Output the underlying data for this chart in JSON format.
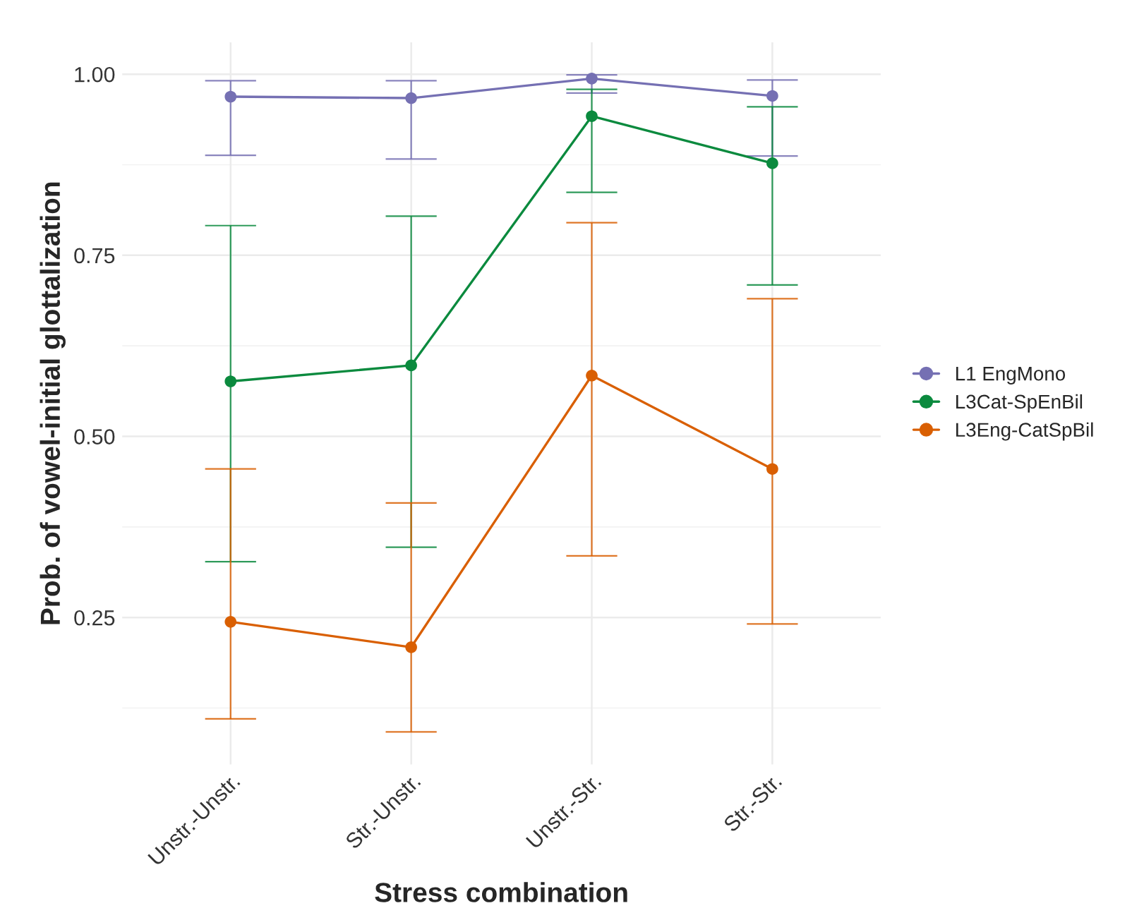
{
  "chart_data": {
    "type": "line",
    "xlabel": "Stress combination",
    "ylabel": "Prob. of vowel-initial glottalization",
    "categories": [
      "Unstr.-Unstr.",
      "Str.-Unstr.",
      "Unstr.-Str.",
      "Str.-Str."
    ],
    "series": [
      {
        "name": "L1 EngMono",
        "color": "#7570b3",
        "values": [
          0.969,
          0.967,
          0.994,
          0.97
        ],
        "errors": [
          [
            0.888,
            0.991
          ],
          [
            0.883,
            0.991
          ],
          [
            0.974,
            0.999
          ],
          [
            0.887,
            0.992
          ]
        ]
      },
      {
        "name": "L3Cat-SpEnBil",
        "color": "#0b8a3e",
        "values": [
          0.576,
          0.598,
          0.942,
          0.877
        ],
        "errors": [
          [
            0.327,
            0.791
          ],
          [
            0.347,
            0.804
          ],
          [
            0.837,
            0.979
          ],
          [
            0.709,
            0.955
          ]
        ]
      },
      {
        "name": "L3Eng-CatSpBil",
        "color": "#d95f02",
        "values": [
          0.244,
          0.209,
          0.584,
          0.455
        ],
        "errors": [
          [
            0.11,
            0.455
          ],
          [
            0.092,
            0.408
          ],
          [
            0.335,
            0.795
          ],
          [
            0.241,
            0.69
          ]
        ]
      }
    ],
    "ylim": [
      0.047,
      1.044
    ],
    "yticks": [
      {
        "value": 0.25,
        "label": "0.25"
      },
      {
        "value": 0.5,
        "label": "0.50"
      },
      {
        "value": 0.75,
        "label": "0.75"
      },
      {
        "value": 1.0,
        "label": "1.00"
      }
    ],
    "grid": true,
    "legend": "right",
    "marker": "circle",
    "line_style": "solid"
  }
}
